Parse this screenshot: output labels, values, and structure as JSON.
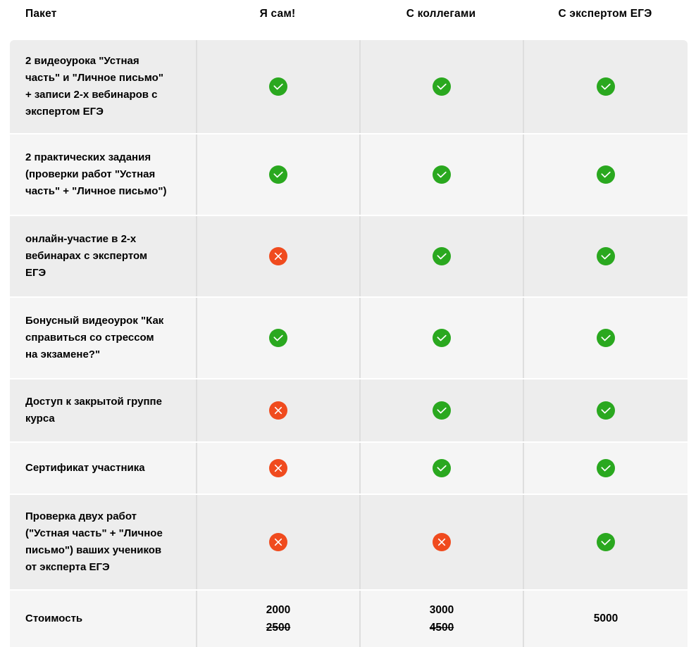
{
  "table": {
    "headers": [
      "Пакет",
      "Я сам!",
      "С коллегами",
      "С экспертом ЕГЭ"
    ],
    "rows": [
      {
        "label": "2 видеоурока \"Устная часть\" и \"Личное письмо\" + записи 2-х вебинаров с экспертом ЕГЭ",
        "cells": [
          "check",
          "check",
          "check"
        ]
      },
      {
        "label": "2 практических задания (проверки работ \"Устная часть\" + \"Личное письмо\")",
        "cells": [
          "check",
          "check",
          "check"
        ]
      },
      {
        "label": "онлайн-участие в 2-х вебинарах с экспертом ЕГЭ",
        "cells": [
          "cross",
          "check",
          "check"
        ]
      },
      {
        "label": "Бонусный видеоурок \"Как справиться со стрессом на экзамене?\"",
        "cells": [
          "check",
          "check",
          "check"
        ]
      },
      {
        "label": "Доступ к закрытой группе курса",
        "cells": [
          "cross",
          "check",
          "check"
        ]
      },
      {
        "label": "Сертификат участника",
        "cells": [
          "cross",
          "check",
          "check"
        ]
      },
      {
        "label": "Проверка двух работ (\"Устная часть\" + \"Личное письмо\") ваших учеников от эксперта ЕГЭ",
        "cells": [
          "cross",
          "cross",
          "check"
        ]
      }
    ],
    "pricing": {
      "label": "Стоимость",
      "columns": [
        {
          "price": "2000",
          "old_price": "2500"
        },
        {
          "price": "3000",
          "old_price": "4500"
        },
        {
          "price": "5000",
          "old_price": ""
        }
      ]
    },
    "colors": {
      "check_green": "#2aa81f",
      "cross_red": "#f04b1e",
      "row_dark": "#ededed",
      "row_light": "#f5f5f5",
      "divider": "#dedede"
    }
  }
}
